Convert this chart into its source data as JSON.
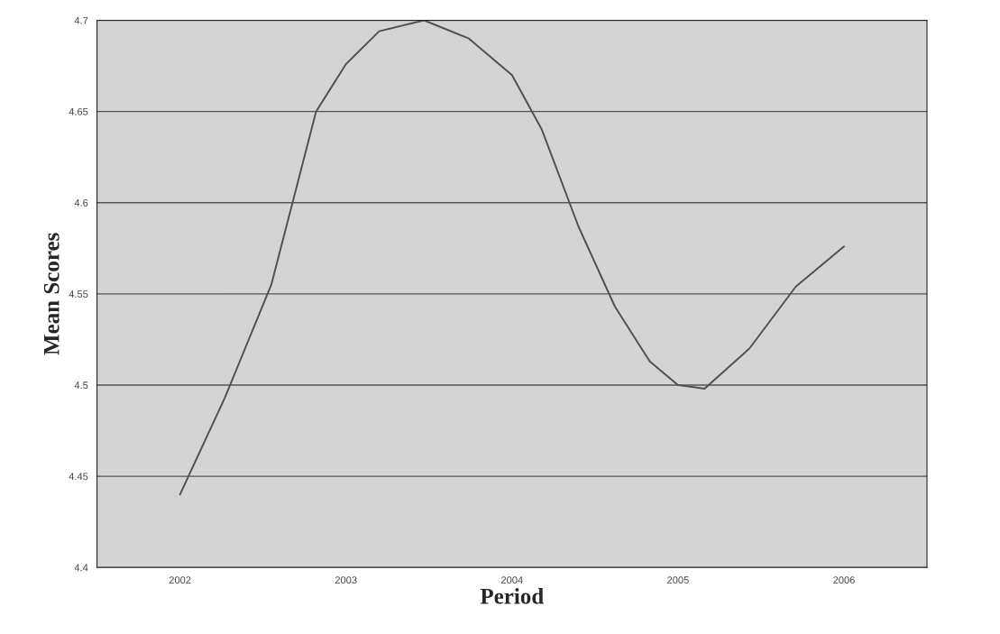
{
  "chart_data": {
    "type": "line",
    "xlabel": "Period",
    "ylabel": "Mean Scores",
    "series": [
      {
        "color": "#505050",
        "x": [
          2002,
          2002.27,
          2002.55,
          2002.82,
          2003,
          2003.2,
          2003.47,
          2003.74,
          2004,
          2004.18,
          2004.4,
          2004.62,
          2004.83,
          2005,
          2005.16,
          2005.43,
          2005.71,
          2006
        ],
        "values": [
          4.44,
          4.493,
          4.555,
          4.65,
          4.676,
          4.694,
          4.7,
          4.69,
          4.67,
          4.64,
          4.587,
          4.543,
          4.513,
          4.5,
          4.498,
          4.52,
          4.554,
          4.576
        ]
      }
    ],
    "xlim": [
      2001.5,
      2006.5
    ],
    "xticks": [
      2002,
      2003,
      2004,
      2005,
      2006
    ],
    "ylim": [
      4.4,
      4.7
    ],
    "yticks": [
      4.4,
      4.45,
      4.5,
      4.55,
      4.6,
      4.65,
      4.7
    ],
    "grid": "y",
    "marker": "none",
    "line_style": "solid"
  }
}
